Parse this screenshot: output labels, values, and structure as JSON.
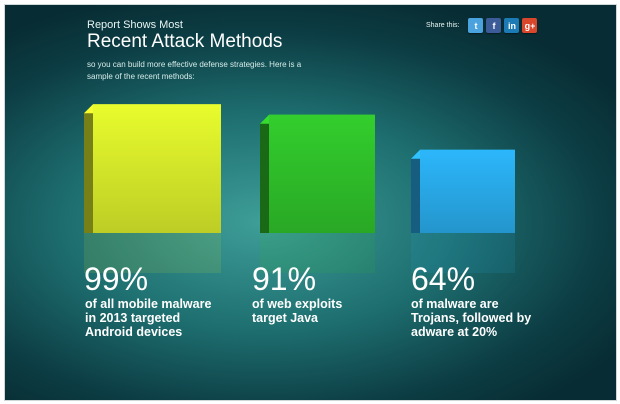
{
  "header": {
    "subtitle": "Report Shows Most",
    "title": "Recent Attack Methods",
    "intro": "so you can build more effective defense strategies. Here is a sample of the recent methods:"
  },
  "share": {
    "label": "Share this:",
    "icons": [
      {
        "name": "twitter-icon",
        "glyph": "t",
        "color": "#4aa3df"
      },
      {
        "name": "facebook-icon",
        "glyph": "f",
        "color": "#3b5b99"
      },
      {
        "name": "linkedin-icon",
        "glyph": "in",
        "color": "#1c7ab5"
      },
      {
        "name": "google-plus-icon",
        "glyph": "g+",
        "color": "#d8462c"
      }
    ]
  },
  "chart_data": {
    "type": "bar",
    "categories": [
      "of all mobile malware in 2013 targeted Android devices",
      "of web exploits target Java",
      "of malware are Trojans, followed by adware at 20%"
    ],
    "values": [
      99,
      91,
      64
    ],
    "value_labels": [
      "99%",
      "91%",
      "64%"
    ],
    "ylim": [
      0,
      100
    ],
    "colors": [
      "#d7e92a",
      "#2fbf2a",
      "#29a9e8"
    ],
    "grid": false,
    "legend": "none"
  }
}
